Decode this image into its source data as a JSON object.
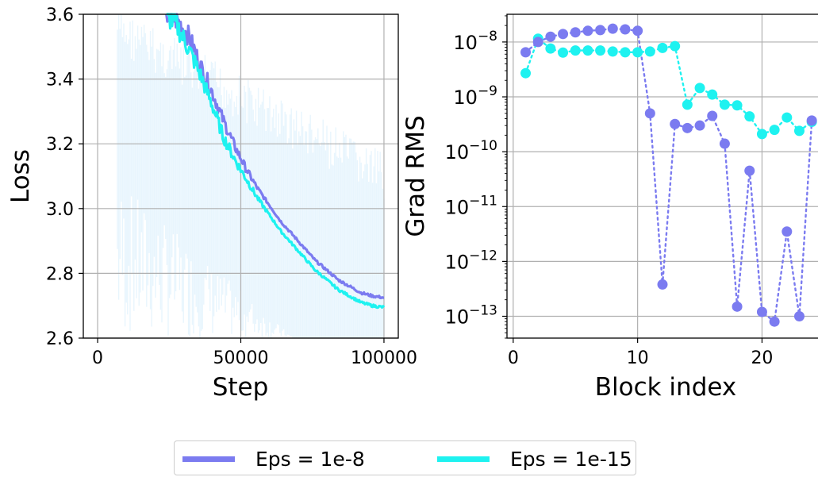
{
  "colors": {
    "eps_1e8": "#7B7BF0",
    "eps_1e15": "#1EF2F0",
    "grid": "#b0b0b0",
    "noise": "#d8eefb"
  },
  "legend": {
    "item1": "Eps = 1e-8",
    "item2": "Eps = 1e-15",
    "placement": "bottom-center"
  },
  "chart_data": [
    {
      "type": "line",
      "xlabel": "Step",
      "ylabel": "Loss",
      "xlim": [
        -5000,
        105000
      ],
      "ylim": [
        2.6,
        3.6
      ],
      "xticks": [
        0,
        50000,
        100000
      ],
      "xtick_labels": [
        "0",
        "50000",
        "100000"
      ],
      "yticks": [
        2.6,
        2.8,
        3.0,
        3.2,
        3.4,
        3.6
      ],
      "ytick_labels": [
        "2.6",
        "2.8",
        "3.0",
        "3.2",
        "3.4",
        "3.6"
      ],
      "grid": true,
      "series": [
        {
          "name": "Eps = 1e-8",
          "x": [
            24000,
            28000,
            32000,
            36000,
            40000,
            44000,
            48000,
            52000,
            56000,
            60000,
            64000,
            68000,
            72000,
            76000,
            80000,
            84000,
            88000,
            92000,
            96000,
            100000
          ],
          "y": [
            3.6,
            3.58,
            3.53,
            3.44,
            3.36,
            3.27,
            3.19,
            3.12,
            3.06,
            3.01,
            2.96,
            2.92,
            2.88,
            2.84,
            2.81,
            2.78,
            2.76,
            2.74,
            2.73,
            2.725
          ]
        },
        {
          "name": "Eps = 1e-15",
          "x": [
            24000,
            28000,
            32000,
            36000,
            40000,
            44000,
            48000,
            52000,
            56000,
            60000,
            64000,
            68000,
            72000,
            76000,
            80000,
            84000,
            88000,
            92000,
            96000,
            100000
          ],
          "y": [
            3.6,
            3.56,
            3.49,
            3.41,
            3.32,
            3.22,
            3.15,
            3.09,
            3.03,
            2.98,
            2.93,
            2.89,
            2.85,
            2.81,
            2.78,
            2.75,
            2.73,
            2.71,
            2.7,
            2.695
          ]
        }
      ]
    },
    {
      "type": "scatter",
      "xlabel": "Block index",
      "ylabel": "Grad RMS",
      "log_y": true,
      "xlim": [
        -0.5,
        24.5
      ],
      "ylim": [
        4e-14,
        3.2e-08
      ],
      "xticks": [
        0,
        10,
        20
      ],
      "xtick_labels": [
        "0",
        "10",
        "20"
      ],
      "ytick_labels": [
        {
          "base": "10",
          "exp": "−8"
        },
        {
          "base": "10",
          "exp": "−9"
        },
        {
          "base": "10",
          "exp": "−10"
        },
        {
          "base": "10",
          "exp": "−11"
        },
        {
          "base": "10",
          "exp": "−12"
        },
        {
          "base": "10",
          "exp": "−13"
        }
      ],
      "grid": true,
      "series": [
        {
          "name": "Eps = 1e-8",
          "x": [
            1,
            2,
            3,
            4,
            5,
            6,
            7,
            8,
            9,
            10,
            11,
            12,
            13,
            14,
            15,
            16,
            17,
            18,
            19,
            20,
            21,
            22,
            23,
            24
          ],
          "y": [
            6.5e-09,
            1e-08,
            1.25e-08,
            1.4e-08,
            1.5e-08,
            1.6e-08,
            1.65e-08,
            1.75e-08,
            1.7e-08,
            1.6e-08,
            5e-10,
            3.8e-13,
            3.2e-10,
            2.7e-10,
            3e-10,
            4.5e-10,
            1.4e-10,
            1.5e-13,
            4.5e-11,
            1.2e-13,
            8e-14,
            3.5e-12,
            1e-13,
            3.7e-10
          ]
        },
        {
          "name": "Eps = 1e-15",
          "x": [
            1,
            2,
            3,
            4,
            5,
            6,
            7,
            8,
            9,
            10,
            11,
            12,
            13,
            14,
            15,
            16,
            17,
            18,
            19,
            20,
            21,
            22,
            23,
            24
          ],
          "y": [
            2.7e-09,
            1.15e-08,
            7.6e-09,
            6.4e-09,
            7e-09,
            7e-09,
            7e-09,
            6.7e-09,
            6.5e-09,
            6.5e-09,
            6.7e-09,
            7.8e-09,
            8.4e-09,
            7.2e-10,
            1.45e-09,
            1.1e-09,
            7.2e-10,
            7e-10,
            4.4e-10,
            2.1e-10,
            2.5e-10,
            4.2e-10,
            2.4e-10,
            3.5e-10
          ]
        }
      ]
    }
  ]
}
